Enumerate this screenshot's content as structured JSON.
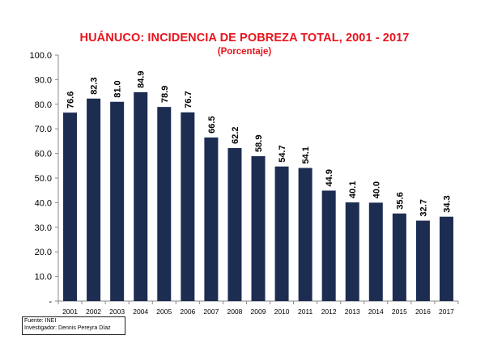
{
  "chart_data": {
    "type": "bar",
    "title": "HUÁNUCO: INCIDENCIA DE POBREZA TOTAL, 2001 - 2017",
    "subtitle": "(Porcentaje)",
    "categories": [
      "2001",
      "2002",
      "2003",
      "2004",
      "2005",
      "2006",
      "2007",
      "2008",
      "2009",
      "2010",
      "2011",
      "2012",
      "2013",
      "2014",
      "2015",
      "2016",
      "2017"
    ],
    "values": [
      76.6,
      82.3,
      81.0,
      84.9,
      78.9,
      76.7,
      66.5,
      62.2,
      58.9,
      54.7,
      54.1,
      44.9,
      40.1,
      40.0,
      35.6,
      32.7,
      34.3
    ],
    "value_labels": [
      "76.6",
      "82.3",
      "81.0",
      "84.9",
      "78.9",
      "76.7",
      "66.5",
      "62.2",
      "58.9",
      "54.7",
      "54.1",
      "44.9",
      "40.1",
      "40.0",
      "35.6",
      "32.7",
      "34.3"
    ],
    "y_ticks": [
      0,
      10,
      20,
      30,
      40,
      50,
      60,
      70,
      80,
      90,
      100
    ],
    "y_tick_labels": [
      "-",
      "10.0",
      "20.0",
      "30.0",
      "40.0",
      "50.0",
      "60.0",
      "70.0",
      "80.0",
      "90.0",
      "100.0"
    ],
    "ylim": [
      0,
      100
    ],
    "xlabel": "",
    "ylabel": "",
    "grid": false,
    "bar_color": "#1d2d52",
    "title_color": "#e8141c"
  },
  "source": {
    "line1": "Fuente: INEI",
    "line2": "Investigador: Dennis Pereyra Díaz"
  }
}
